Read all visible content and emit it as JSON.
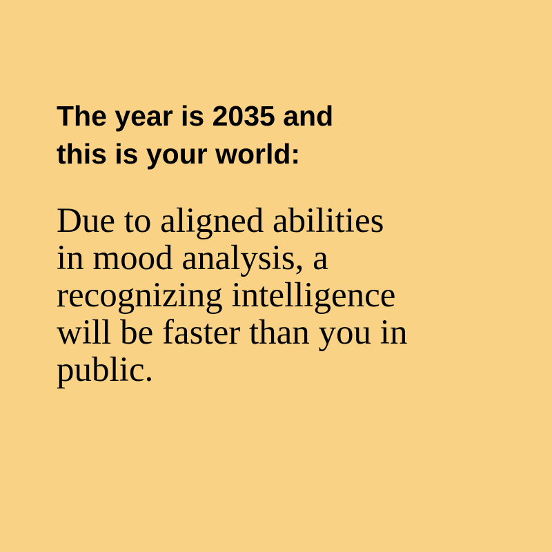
{
  "colors": {
    "background": "#F9D286",
    "text": "#000000"
  },
  "heading": {
    "lines": [
      "The year is 2035 and",
      "this is your world:"
    ]
  },
  "body": {
    "lines": [
      "Due to aligned abilities",
      "in mood analysis, a",
      "recognizing intelligence",
      "will be faster than you in",
      "public."
    ]
  }
}
